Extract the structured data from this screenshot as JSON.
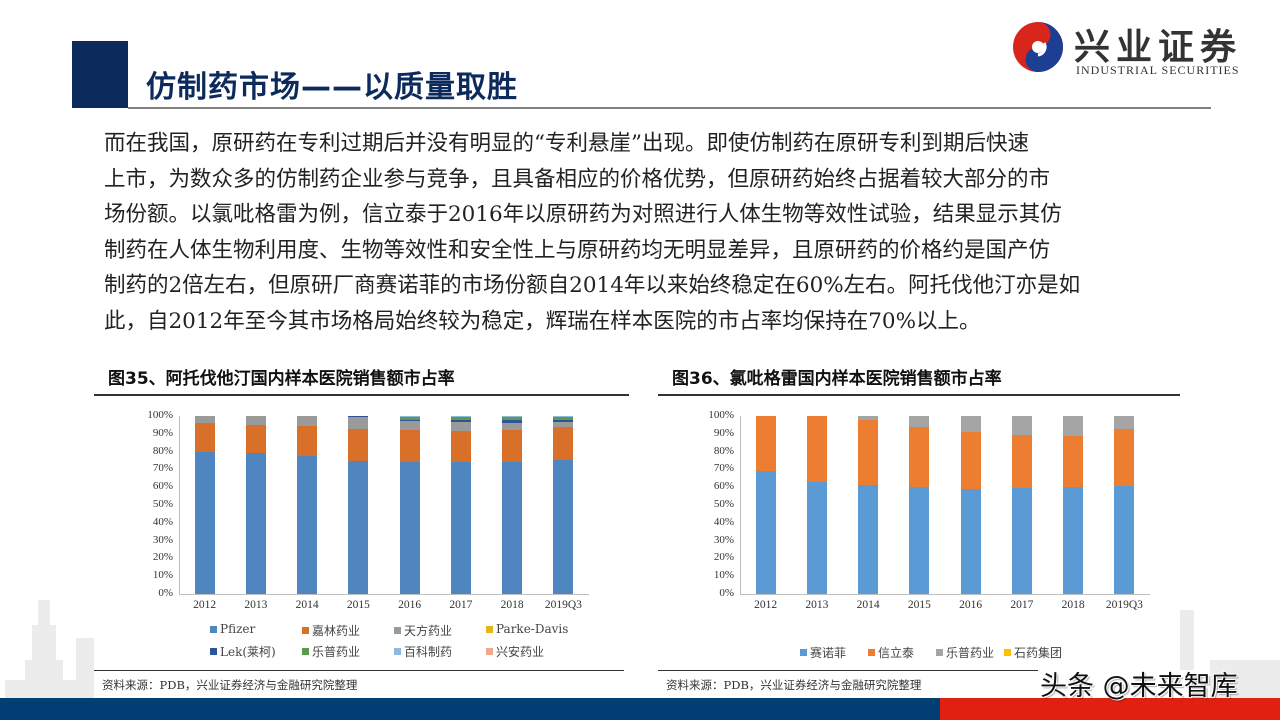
{
  "header": {
    "title": "仿制药市场——以质量取胜",
    "logo": {
      "cn": "兴业证券",
      "en": "INDUSTRIAL SECURITIES",
      "colors": {
        "red": "#d9261c",
        "blue": "#1c3f94"
      }
    }
  },
  "body": {
    "lines": [
      "而在我国，原研药在专利过期后并没有明显的“专利悬崖”出现。即使仿制药在原研专利到期后快速",
      "上市，为数众多的仿制药企业参与竞争，且具备相应的价格优势，但原研药始终占据着较大部分的市",
      "场份额。以氯吡格雷为例，信立泰于2016年以原研药为对照进行人体生物等效性试验，结果显示其仿",
      "制药在人体生物利用度、生物等效性和安全性上与原研药均无明显差异，且原研药的价格约是国产仿",
      "制药的2倍左右，但原研厂商赛诺菲的市场份额自2014年以来始终稳定在60%左右。阿托伐他汀亦是如",
      "此，自2012年至今其市场格局始终较为稳定，辉瑞在样本医院的市占率均保持在70%以上。"
    ]
  },
  "figures": [
    {
      "title": "图35、阿托伐他汀国内样本医院销售额市占率",
      "source": "资料来源：PDB，兴业证券经济与金融研究院整理"
    },
    {
      "title": "图36、氯吡格雷国内样本医院销售额市占率",
      "source": "资料来源：PDB，兴业证券经济与金融研究院整理"
    }
  ],
  "watermark": "头条 @未来智库",
  "chart_data": [
    {
      "type": "bar",
      "stacked": true,
      "title": "图35、阿托伐他汀国内样本医院销售额市占率",
      "xlabel": "",
      "ylabel": "",
      "ylim": [
        0,
        100
      ],
      "yticks": [
        "0%",
        "10%",
        "20%",
        "30%",
        "40%",
        "50%",
        "60%",
        "70%",
        "80%",
        "90%",
        "100%"
      ],
      "grid": false,
      "legend_position": "bottom",
      "categories": [
        "2012",
        "2013",
        "2014",
        "2015",
        "2016",
        "2017",
        "2018",
        "2019Q3"
      ],
      "series": [
        {
          "name": "Pfizer",
          "color": "#4f86c0",
          "values": [
            80,
            79.5,
            77.5,
            75,
            74,
            74,
            74,
            75.5
          ]
        },
        {
          "name": "嘉林药业",
          "color": "#d8702a",
          "values": [
            16,
            15.5,
            17,
            17.5,
            18,
            17.5,
            18,
            18.5
          ]
        },
        {
          "name": "天方药业",
          "color": "#9a9a9a",
          "values": [
            4,
            5,
            5.5,
            7,
            5,
            5,
            4,
            2.5
          ]
        },
        {
          "name": "Parke-Davis",
          "color": "#e8b320",
          "values": [
            0,
            0,
            0,
            0,
            0,
            0,
            0,
            0
          ]
        },
        {
          "name": "Lek(莱柯)",
          "color": "#2f5597",
          "values": [
            0,
            0,
            0,
            0.5,
            1,
            1,
            2,
            1.5
          ]
        },
        {
          "name": "乐普药业",
          "color": "#5a9b4e",
          "values": [
            0,
            0,
            0,
            0,
            1.5,
            2,
            1.5,
            1.5
          ]
        },
        {
          "name": "百科制药",
          "color": "#8fb9e0",
          "values": [
            0,
            0,
            0,
            0,
            0.5,
            0.5,
            0.5,
            0.5
          ]
        },
        {
          "name": "兴安药业",
          "color": "#f0a890",
          "values": [
            0,
            0,
            0,
            0,
            0,
            0,
            0,
            0
          ]
        }
      ]
    },
    {
      "type": "bar",
      "stacked": true,
      "title": "图36、氯吡格雷国内样本医院销售额市占率",
      "xlabel": "",
      "ylabel": "",
      "ylim": [
        0,
        100
      ],
      "yticks": [
        "0%",
        "10%",
        "20%",
        "30%",
        "40%",
        "50%",
        "60%",
        "70%",
        "80%",
        "90%",
        "100%"
      ],
      "grid": false,
      "legend_position": "bottom",
      "categories": [
        "2012",
        "2013",
        "2014",
        "2015",
        "2016",
        "2017",
        "2018",
        "2019Q3"
      ],
      "series": [
        {
          "name": "赛诺菲",
          "color": "#5b9bd5",
          "values": [
            69,
            63,
            61.5,
            60,
            59,
            59.5,
            60,
            60.5
          ]
        },
        {
          "name": "信立泰",
          "color": "#ed7d31",
          "values": [
            31,
            37,
            36,
            34,
            32,
            30,
            29,
            32
          ]
        },
        {
          "name": "乐普药业",
          "color": "#a5a5a5",
          "values": [
            0,
            0,
            2.5,
            6,
            9,
            10.5,
            11,
            7.5
          ]
        },
        {
          "name": "石药集团",
          "color": "#ffc000",
          "values": [
            0,
            0,
            0,
            0,
            0,
            0,
            0,
            0
          ]
        }
      ]
    }
  ]
}
